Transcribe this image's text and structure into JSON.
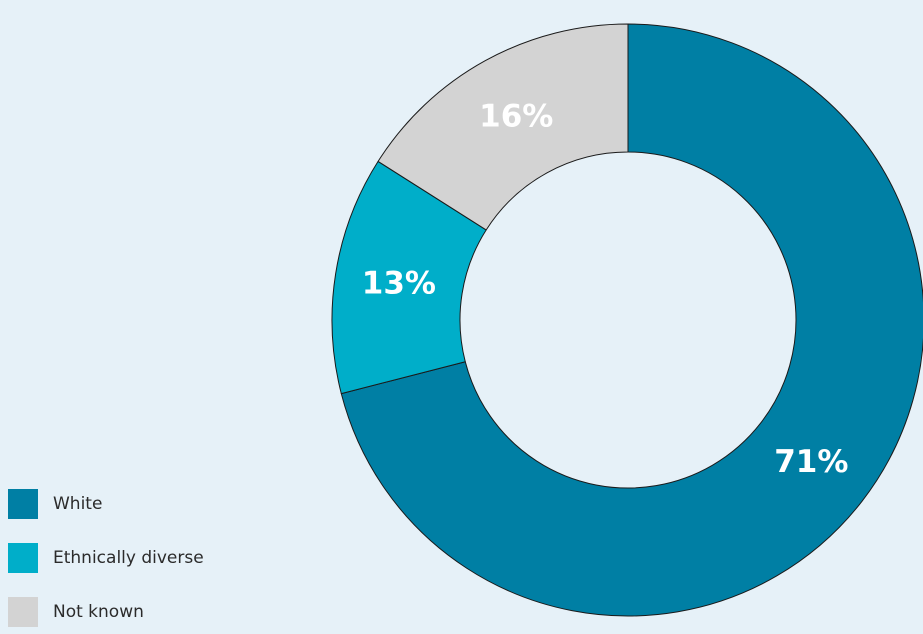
{
  "chart_data": {
    "type": "pie",
    "categories": [
      "White",
      "Ethnically diverse",
      "Not known"
    ],
    "values": [
      71,
      13,
      16
    ],
    "data_labels": [
      "71%",
      "13%",
      "16%"
    ],
    "colors": [
      "#007fa4",
      "#00aec9",
      "#d3d3d3"
    ],
    "donut": true,
    "legend_position": "bottom-left",
    "title": ""
  },
  "legend": {
    "items": [
      {
        "label": "White",
        "color": "#007fa4"
      },
      {
        "label": "Ethnically diverse",
        "color": "#00aec9"
      },
      {
        "label": "Not known",
        "color": "#d3d3d3"
      }
    ]
  },
  "colors": {
    "background": "#e6f1f8",
    "slice_outline": "#1a1a1a"
  }
}
